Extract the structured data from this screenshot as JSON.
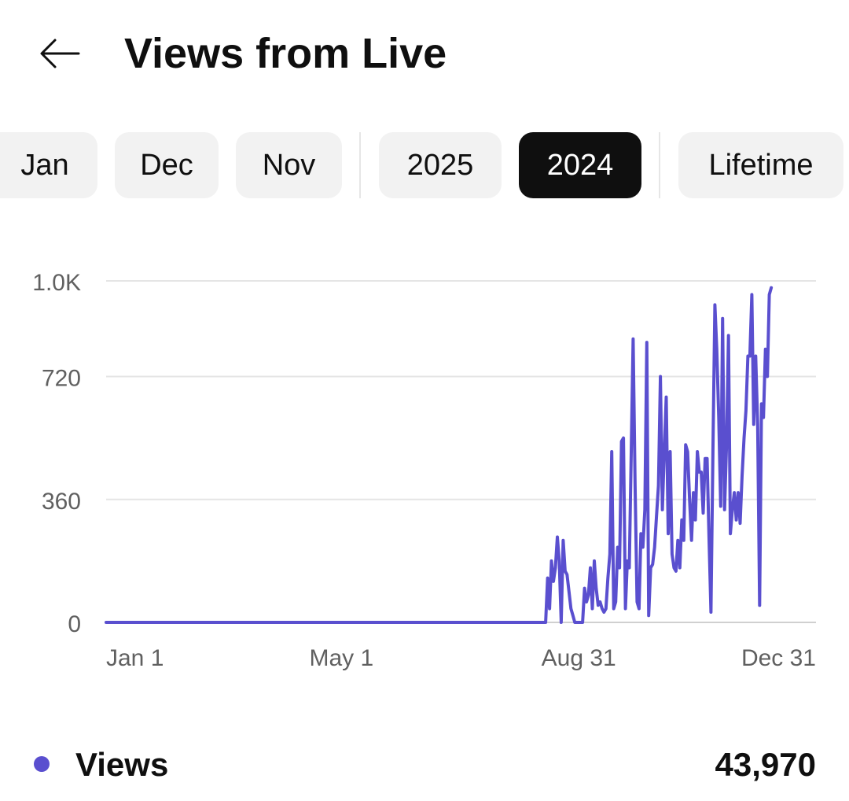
{
  "header": {
    "title": "Views from Live",
    "back_icon": "arrow-left-icon"
  },
  "filters": {
    "chips": [
      {
        "label": "Jan",
        "selected": false
      },
      {
        "label": "Dec",
        "selected": false
      },
      {
        "label": "Nov",
        "selected": false
      },
      {
        "label": "2025",
        "selected": false
      },
      {
        "label": "2024",
        "selected": true
      },
      {
        "label": "Lifetime",
        "selected": false
      }
    ]
  },
  "colors": {
    "series": "#5a4fcf",
    "selected_chip_bg": "#0f0f0f",
    "chip_bg": "#f2f2f2",
    "grid": "#e5e5e5",
    "axis_text": "#606060"
  },
  "chart_data": {
    "type": "line",
    "x_axis": {
      "min": "2024-01-01",
      "max": "2024-12-31",
      "tick_labels": [
        "Jan 1",
        "May 1",
        "Aug 31",
        "Dec 31"
      ],
      "ticks": [
        "2024-01-01",
        "2024-05-01",
        "2024-08-31",
        "2024-12-31"
      ]
    },
    "y_axis": {
      "min": 0,
      "max": 1000,
      "tick_labels": [
        "1.0K",
        "720",
        "360",
        "0"
      ],
      "ticks": [
        1000,
        720,
        360,
        0
      ]
    },
    "grid": true,
    "series": [
      {
        "name": "Views",
        "points": [
          [
            "2024-01-01",
            0
          ],
          [
            "2024-08-14",
            0
          ],
          [
            "2024-08-15",
            130
          ],
          [
            "2024-08-16",
            40
          ],
          [
            "2024-08-17",
            180
          ],
          [
            "2024-08-18",
            120
          ],
          [
            "2024-08-19",
            160
          ],
          [
            "2024-08-20",
            250
          ],
          [
            "2024-08-21",
            180
          ],
          [
            "2024-08-22",
            0
          ],
          [
            "2024-08-23",
            240
          ],
          [
            "2024-08-24",
            150
          ],
          [
            "2024-08-25",
            140
          ],
          [
            "2024-08-26",
            90
          ],
          [
            "2024-08-27",
            40
          ],
          [
            "2024-08-28",
            20
          ],
          [
            "2024-08-29",
            0
          ],
          [
            "2024-09-02",
            0
          ],
          [
            "2024-09-03",
            100
          ],
          [
            "2024-09-04",
            60
          ],
          [
            "2024-09-05",
            80
          ],
          [
            "2024-09-06",
            160
          ],
          [
            "2024-09-07",
            40
          ],
          [
            "2024-09-08",
            180
          ],
          [
            "2024-09-09",
            100
          ],
          [
            "2024-09-10",
            50
          ],
          [
            "2024-09-11",
            60
          ],
          [
            "2024-09-12",
            40
          ],
          [
            "2024-09-13",
            30
          ],
          [
            "2024-09-14",
            40
          ],
          [
            "2024-09-15",
            130
          ],
          [
            "2024-09-16",
            200
          ],
          [
            "2024-09-17",
            500
          ],
          [
            "2024-09-18",
            40
          ],
          [
            "2024-09-19",
            60
          ],
          [
            "2024-09-20",
            220
          ],
          [
            "2024-09-21",
            160
          ],
          [
            "2024-09-22",
            530
          ],
          [
            "2024-09-23",
            540
          ],
          [
            "2024-09-24",
            40
          ],
          [
            "2024-09-25",
            180
          ],
          [
            "2024-09-26",
            160
          ],
          [
            "2024-09-27",
            500
          ],
          [
            "2024-09-28",
            830
          ],
          [
            "2024-09-29",
            400
          ],
          [
            "2024-09-30",
            60
          ],
          [
            "2024-10-01",
            40
          ],
          [
            "2024-10-02",
            260
          ],
          [
            "2024-10-03",
            220
          ],
          [
            "2024-10-04",
            330
          ],
          [
            "2024-10-05",
            820
          ],
          [
            "2024-10-06",
            20
          ],
          [
            "2024-10-07",
            160
          ],
          [
            "2024-10-08",
            170
          ],
          [
            "2024-10-09",
            220
          ],
          [
            "2024-10-10",
            310
          ],
          [
            "2024-10-11",
            400
          ],
          [
            "2024-10-12",
            720
          ],
          [
            "2024-10-13",
            330
          ],
          [
            "2024-10-14",
            500
          ],
          [
            "2024-10-15",
            660
          ],
          [
            "2024-10-16",
            260
          ],
          [
            "2024-10-17",
            500
          ],
          [
            "2024-10-18",
            200
          ],
          [
            "2024-10-19",
            160
          ],
          [
            "2024-10-20",
            150
          ],
          [
            "2024-10-21",
            240
          ],
          [
            "2024-10-22",
            160
          ],
          [
            "2024-10-23",
            300
          ],
          [
            "2024-10-24",
            240
          ],
          [
            "2024-10-25",
            520
          ],
          [
            "2024-10-26",
            500
          ],
          [
            "2024-10-27",
            360
          ],
          [
            "2024-10-28",
            240
          ],
          [
            "2024-10-29",
            380
          ],
          [
            "2024-10-30",
            300
          ],
          [
            "2024-10-31",
            500
          ],
          [
            "2024-11-01",
            440
          ],
          [
            "2024-11-02",
            440
          ],
          [
            "2024-11-03",
            320
          ],
          [
            "2024-11-04",
            480
          ],
          [
            "2024-11-05",
            480
          ],
          [
            "2024-11-06",
            250
          ],
          [
            "2024-11-07",
            30
          ],
          [
            "2024-11-08",
            500
          ],
          [
            "2024-11-09",
            930
          ],
          [
            "2024-11-10",
            800
          ],
          [
            "2024-11-11",
            600
          ],
          [
            "2024-11-12",
            340
          ],
          [
            "2024-11-13",
            890
          ],
          [
            "2024-11-14",
            330
          ],
          [
            "2024-11-15",
            520
          ],
          [
            "2024-11-16",
            840
          ],
          [
            "2024-11-17",
            260
          ],
          [
            "2024-11-18",
            330
          ],
          [
            "2024-11-19",
            380
          ],
          [
            "2024-11-20",
            300
          ],
          [
            "2024-11-21",
            380
          ],
          [
            "2024-11-22",
            290
          ],
          [
            "2024-11-23",
            430
          ],
          [
            "2024-11-24",
            540
          ],
          [
            "2024-11-25",
            620
          ],
          [
            "2024-11-26",
            780
          ],
          [
            "2024-11-27",
            780
          ],
          [
            "2024-11-28",
            960
          ],
          [
            "2024-11-29",
            580
          ],
          [
            "2024-11-30",
            780
          ],
          [
            "2024-12-01",
            580
          ],
          [
            "2024-12-02",
            50
          ],
          [
            "2024-12-03",
            640
          ],
          [
            "2024-12-04",
            600
          ],
          [
            "2024-12-05",
            800
          ],
          [
            "2024-12-06",
            720
          ],
          [
            "2024-12-07",
            960
          ],
          [
            "2024-12-08",
            980
          ]
        ]
      }
    ]
  },
  "legend": {
    "label": "Views",
    "value": "43,970"
  }
}
